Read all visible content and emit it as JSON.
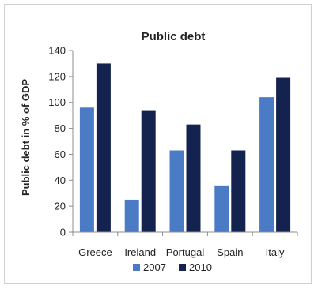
{
  "chart_data": {
    "type": "bar",
    "title": "Public debt",
    "ylabel": "Public debt in % of GDP",
    "xlabel": "",
    "categories": [
      "Greece",
      "Ireland",
      "Portugal",
      "Spain",
      "Italy"
    ],
    "series": [
      {
        "name": "2007",
        "color": "#4a7bc4",
        "values": [
          96,
          25,
          63,
          36,
          104
        ]
      },
      {
        "name": "2010",
        "color": "#14224f",
        "values": [
          130,
          94,
          83,
          63,
          119
        ]
      }
    ],
    "ylim": [
      0,
      140
    ],
    "yticks": [
      0,
      20,
      40,
      60,
      80,
      100,
      120,
      140
    ],
    "grid": false,
    "legend_position": "bottom"
  }
}
